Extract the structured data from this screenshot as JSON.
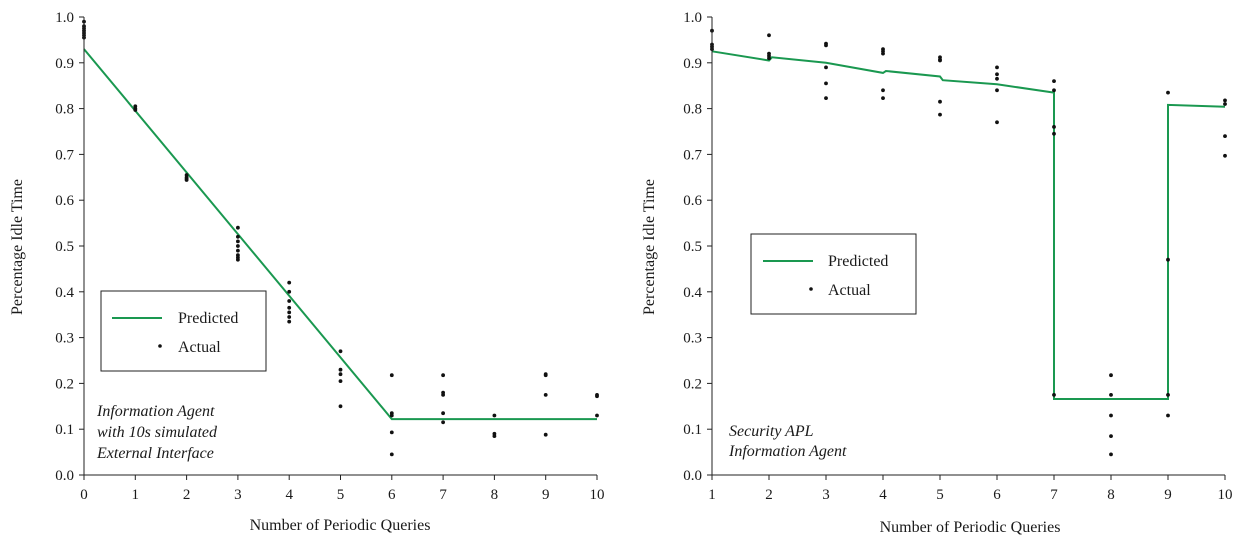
{
  "colors": {
    "predicted": "#1a9850",
    "actual": "#111111",
    "axis": "#222222"
  },
  "chart_data": [
    {
      "type": "line",
      "xlabel": "Number of Periodic Queries",
      "ylabel": "Percentage Idle Time",
      "xlim": [
        0,
        10
      ],
      "ylim": [
        0.0,
        1.0
      ],
      "xticks": [
        "0",
        "1",
        "2",
        "3",
        "4",
        "5",
        "6",
        "7",
        "8",
        "9",
        "10"
      ],
      "yticks": [
        "0.0",
        "0.1",
        "0.2",
        "0.3",
        "0.4",
        "0.5",
        "0.6",
        "0.7",
        "0.8",
        "0.9",
        "1.0"
      ],
      "annotation": [
        "Information Agent",
        "with 10s simulated",
        "External Interface"
      ],
      "legend": {
        "predicted": "Predicted",
        "actual": "Actual",
        "position": "lower-left"
      },
      "series": [
        {
          "name": "Predicted",
          "kind": "line",
          "points": [
            [
              0,
              0.93
            ],
            [
              6,
              0.122
            ],
            [
              10,
              0.122
            ]
          ]
        },
        {
          "name": "Actual",
          "kind": "points",
          "points": [
            [
              0,
              0.99
            ],
            [
              0,
              0.98
            ],
            [
              0,
              0.975
            ],
            [
              0,
              0.97
            ],
            [
              0,
              0.965
            ],
            [
              0,
              0.96
            ],
            [
              0,
              0.955
            ],
            [
              1,
              0.805
            ],
            [
              1,
              0.8
            ],
            [
              1,
              0.797
            ],
            [
              2,
              0.655
            ],
            [
              2,
              0.65
            ],
            [
              2,
              0.647
            ],
            [
              2,
              0.644
            ],
            [
              3,
              0.54
            ],
            [
              3,
              0.52
            ],
            [
              3,
              0.51
            ],
            [
              3,
              0.5
            ],
            [
              3,
              0.49
            ],
            [
              3,
              0.48
            ],
            [
              3,
              0.475
            ],
            [
              3,
              0.47
            ],
            [
              4,
              0.42
            ],
            [
              4,
              0.4
            ],
            [
              4,
              0.38
            ],
            [
              4,
              0.365
            ],
            [
              4,
              0.355
            ],
            [
              4,
              0.345
            ],
            [
              4,
              0.335
            ],
            [
              5,
              0.27
            ],
            [
              5,
              0.23
            ],
            [
              5,
              0.22
            ],
            [
              5,
              0.205
            ],
            [
              5,
              0.15
            ],
            [
              6,
              0.218
            ],
            [
              6,
              0.135
            ],
            [
              6,
              0.13
            ],
            [
              6,
              0.093
            ],
            [
              6,
              0.045
            ],
            [
              7,
              0.218
            ],
            [
              7,
              0.18
            ],
            [
              7,
              0.175
            ],
            [
              7,
              0.135
            ],
            [
              7,
              0.115
            ],
            [
              8,
              0.13
            ],
            [
              8,
              0.09
            ],
            [
              8,
              0.085
            ],
            [
              9,
              0.22
            ],
            [
              9,
              0.218
            ],
            [
              9,
              0.175
            ],
            [
              9,
              0.088
            ],
            [
              10,
              0.175
            ],
            [
              10,
              0.172
            ],
            [
              10,
              0.13
            ]
          ]
        }
      ]
    },
    {
      "type": "line",
      "xlabel": "Number of Periodic Queries",
      "ylabel": "Percentage Idle Time",
      "xlim": [
        1,
        10
      ],
      "ylim": [
        0.0,
        1.0
      ],
      "xticks": [
        "1",
        "2",
        "3",
        "4",
        "5",
        "6",
        "7",
        "8",
        "9",
        "10"
      ],
      "yticks": [
        "0.0",
        "0.1",
        "0.2",
        "0.3",
        "0.4",
        "0.5",
        "0.6",
        "0.7",
        "0.8",
        "0.9",
        "1.0"
      ],
      "annotation": [
        "Security APL",
        "Information Agent"
      ],
      "legend": {
        "predicted": "Predicted",
        "actual": "Actual",
        "position": "center-left"
      },
      "series": [
        {
          "name": "Predicted",
          "kind": "line",
          "points": [
            [
              1,
              0.925
            ],
            [
              2,
              0.905
            ],
            [
              2.05,
              0.912
            ],
            [
              3,
              0.9
            ],
            [
              4,
              0.878
            ],
            [
              4.05,
              0.882
            ],
            [
              5,
              0.87
            ],
            [
              5.05,
              0.862
            ],
            [
              6,
              0.853
            ],
            [
              7,
              0.835
            ],
            [
              7,
              0.166
            ],
            [
              9,
              0.166
            ],
            [
              9,
              0.808
            ],
            [
              10,
              0.804
            ]
          ]
        },
        {
          "name": "Actual",
          "kind": "points",
          "points": [
            [
              1,
              0.97
            ],
            [
              1,
              0.94
            ],
            [
              1,
              0.935
            ],
            [
              1,
              0.93
            ],
            [
              2,
              0.96
            ],
            [
              2,
              0.92
            ],
            [
              2,
              0.915
            ],
            [
              2,
              0.91
            ],
            [
              3,
              0.942
            ],
            [
              3,
              0.938
            ],
            [
              3,
              0.89
            ],
            [
              3,
              0.855
            ],
            [
              3,
              0.823
            ],
            [
              4,
              0.93
            ],
            [
              4,
              0.925
            ],
            [
              4,
              0.92
            ],
            [
              4,
              0.84
            ],
            [
              4,
              0.823
            ],
            [
              5,
              0.912
            ],
            [
              5,
              0.907
            ],
            [
              5,
              0.905
            ],
            [
              5,
              0.815
            ],
            [
              5,
              0.787
            ],
            [
              6,
              0.89
            ],
            [
              6,
              0.875
            ],
            [
              6,
              0.865
            ],
            [
              6,
              0.84
            ],
            [
              6,
              0.77
            ],
            [
              7,
              0.86
            ],
            [
              7,
              0.84
            ],
            [
              7,
              0.76
            ],
            [
              7,
              0.745
            ],
            [
              7,
              0.175
            ],
            [
              8,
              0.218
            ],
            [
              8,
              0.175
            ],
            [
              8,
              0.13
            ],
            [
              8,
              0.085
            ],
            [
              8,
              0.045
            ],
            [
              9,
              0.835
            ],
            [
              9,
              0.47
            ],
            [
              9,
              0.175
            ],
            [
              9,
              0.13
            ],
            [
              10,
              0.818
            ],
            [
              10,
              0.81
            ],
            [
              10,
              0.74
            ],
            [
              10,
              0.697
            ]
          ]
        }
      ]
    }
  ]
}
